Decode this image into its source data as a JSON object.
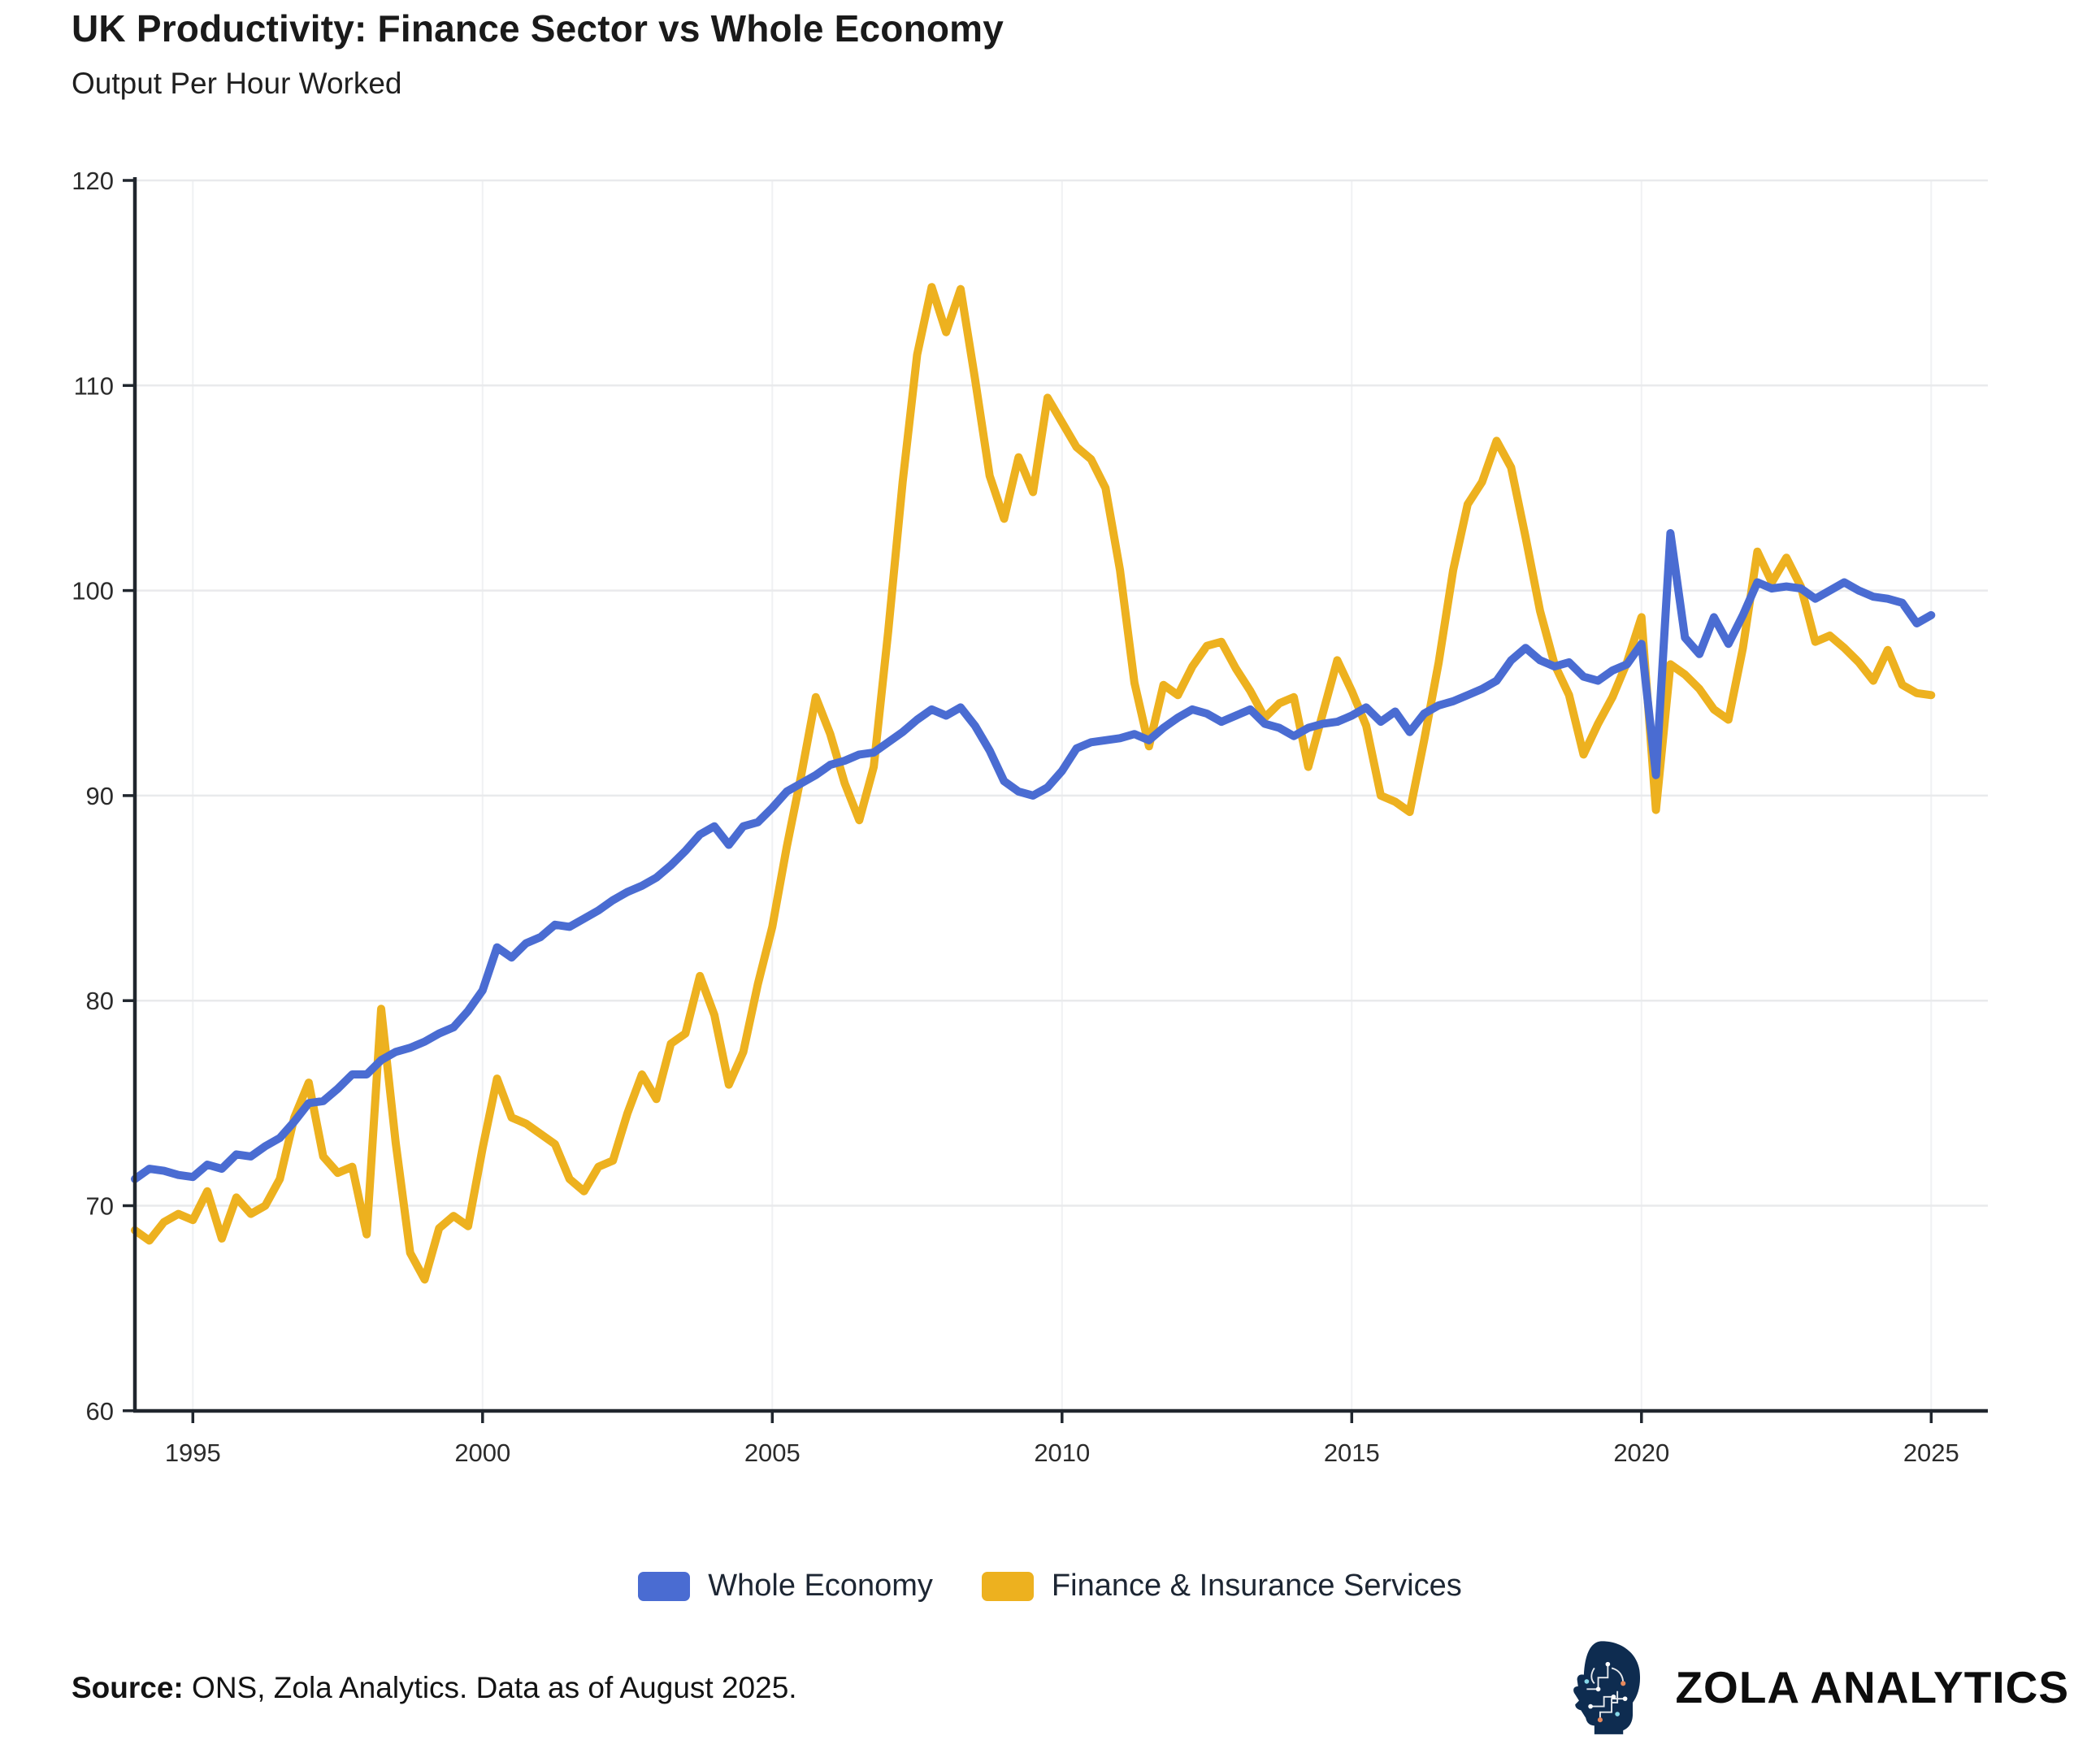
{
  "header": {
    "title": "UK Productivity: Finance Sector vs Whole Economy",
    "subtitle": "Output Per Hour Worked"
  },
  "chart_data": {
    "type": "line",
    "title": "UK Productivity: Finance Sector vs Whole Economy",
    "subtitle": "Output Per Hour Worked",
    "x_start": 1994.0,
    "x_step": 0.25,
    "xlim": [
      1994.0,
      2025.95
    ],
    "ylim": [
      60,
      120
    ],
    "x_ticks": [
      1995,
      2000,
      2005,
      2010,
      2015,
      2020,
      2025
    ],
    "y_ticks": [
      60,
      70,
      80,
      90,
      100,
      110,
      120
    ],
    "grid": {
      "horizontal": true,
      "vertical": true
    },
    "legend_position": "bottom-center",
    "series": [
      {
        "name": "Whole Economy",
        "color": "#4A6CD2",
        "values": [
          71.3,
          71.8,
          71.7,
          71.5,
          71.4,
          72.0,
          71.8,
          72.5,
          72.4,
          72.9,
          73.3,
          74.1,
          75.0,
          75.1,
          75.7,
          76.4,
          76.4,
          77.1,
          77.5,
          77.7,
          78.0,
          78.4,
          78.7,
          79.5,
          80.5,
          82.6,
          82.1,
          82.8,
          83.1,
          83.7,
          83.6,
          84.0,
          84.4,
          84.9,
          85.3,
          85.6,
          86.0,
          86.6,
          87.3,
          88.1,
          88.5,
          87.6,
          88.5,
          88.7,
          89.4,
          90.2,
          90.6,
          91.0,
          91.5,
          91.7,
          92.0,
          92.1,
          92.6,
          93.1,
          93.7,
          94.2,
          93.9,
          94.3,
          93.4,
          92.2,
          90.7,
          90.2,
          90.0,
          90.4,
          91.2,
          92.3,
          92.6,
          92.7,
          92.8,
          93.0,
          92.7,
          93.3,
          93.8,
          94.2,
          94.0,
          93.6,
          93.9,
          94.2,
          93.5,
          93.3,
          92.9,
          93.3,
          93.5,
          93.6,
          93.9,
          94.3,
          93.6,
          94.1,
          93.1,
          94.0,
          94.4,
          94.6,
          94.9,
          95.2,
          95.6,
          96.6,
          97.2,
          96.6,
          96.3,
          96.5,
          95.8,
          95.6,
          96.1,
          96.4,
          97.4,
          91.0,
          102.8,
          97.7,
          96.9,
          98.7,
          97.4,
          98.8,
          100.4,
          100.1,
          100.2,
          100.1,
          99.6,
          100.0,
          100.4,
          100.0,
          99.7,
          99.6,
          99.4,
          98.4,
          98.8
        ]
      },
      {
        "name": "Finance & Insurance Services",
        "color": "#EDB11F",
        "values": [
          68.8,
          68.3,
          69.2,
          69.6,
          69.3,
          70.7,
          68.4,
          70.4,
          69.6,
          70.0,
          71.3,
          74.3,
          76.0,
          72.4,
          71.6,
          71.9,
          68.6,
          79.6,
          73.1,
          67.7,
          66.4,
          68.9,
          69.5,
          69.0,
          72.8,
          76.2,
          74.3,
          74.0,
          73.5,
          73.0,
          71.3,
          70.7,
          71.9,
          72.2,
          74.5,
          76.4,
          75.2,
          77.9,
          78.4,
          81.2,
          79.3,
          75.9,
          77.5,
          80.8,
          83.6,
          87.5,
          91.0,
          94.8,
          93.0,
          90.6,
          88.8,
          91.4,
          98.0,
          105.3,
          111.5,
          114.8,
          112.6,
          114.7,
          110.3,
          105.6,
          103.5,
          106.5,
          104.8,
          109.4,
          108.2,
          107.0,
          106.4,
          105.0,
          101.0,
          95.5,
          92.4,
          95.4,
          94.9,
          96.3,
          97.3,
          97.5,
          96.2,
          95.1,
          93.8,
          94.5,
          94.8,
          91.4,
          94.0,
          96.6,
          95.1,
          93.4,
          90.0,
          89.7,
          89.2,
          92.7,
          96.5,
          101.0,
          104.2,
          105.3,
          107.3,
          106.0,
          102.6,
          99.0,
          96.4,
          94.9,
          92.0,
          93.5,
          94.8,
          96.5,
          98.7,
          89.3,
          96.4,
          95.9,
          95.2,
          94.2,
          93.7,
          97.2,
          101.9,
          100.4,
          101.6,
          100.2,
          97.5,
          97.8,
          97.2,
          96.5,
          95.6,
          97.1,
          95.4,
          95.0,
          94.9
        ]
      }
    ]
  },
  "legend": {
    "items": [
      {
        "label": "Whole Economy",
        "color": "#4A6CD2"
      },
      {
        "label": "Finance & Insurance Services",
        "color": "#EDB11F"
      }
    ]
  },
  "footer": {
    "source_label": "Source:",
    "source_text": " ONS, Zola Analytics. Data as of August 2025."
  },
  "logo": {
    "wordmark": "ZOLA ANALYTICS",
    "icon_color": "#0e2c50",
    "accent_colors": [
      "#ffffff",
      "#e8895c",
      "#86d8e8"
    ]
  },
  "style": {
    "axis_color": "#20262e",
    "grid_color": "#e9eaec",
    "grid_color_vertical": "#f0f1f3",
    "tick_label_color": "#2b2b2b",
    "line_width": 10
  }
}
